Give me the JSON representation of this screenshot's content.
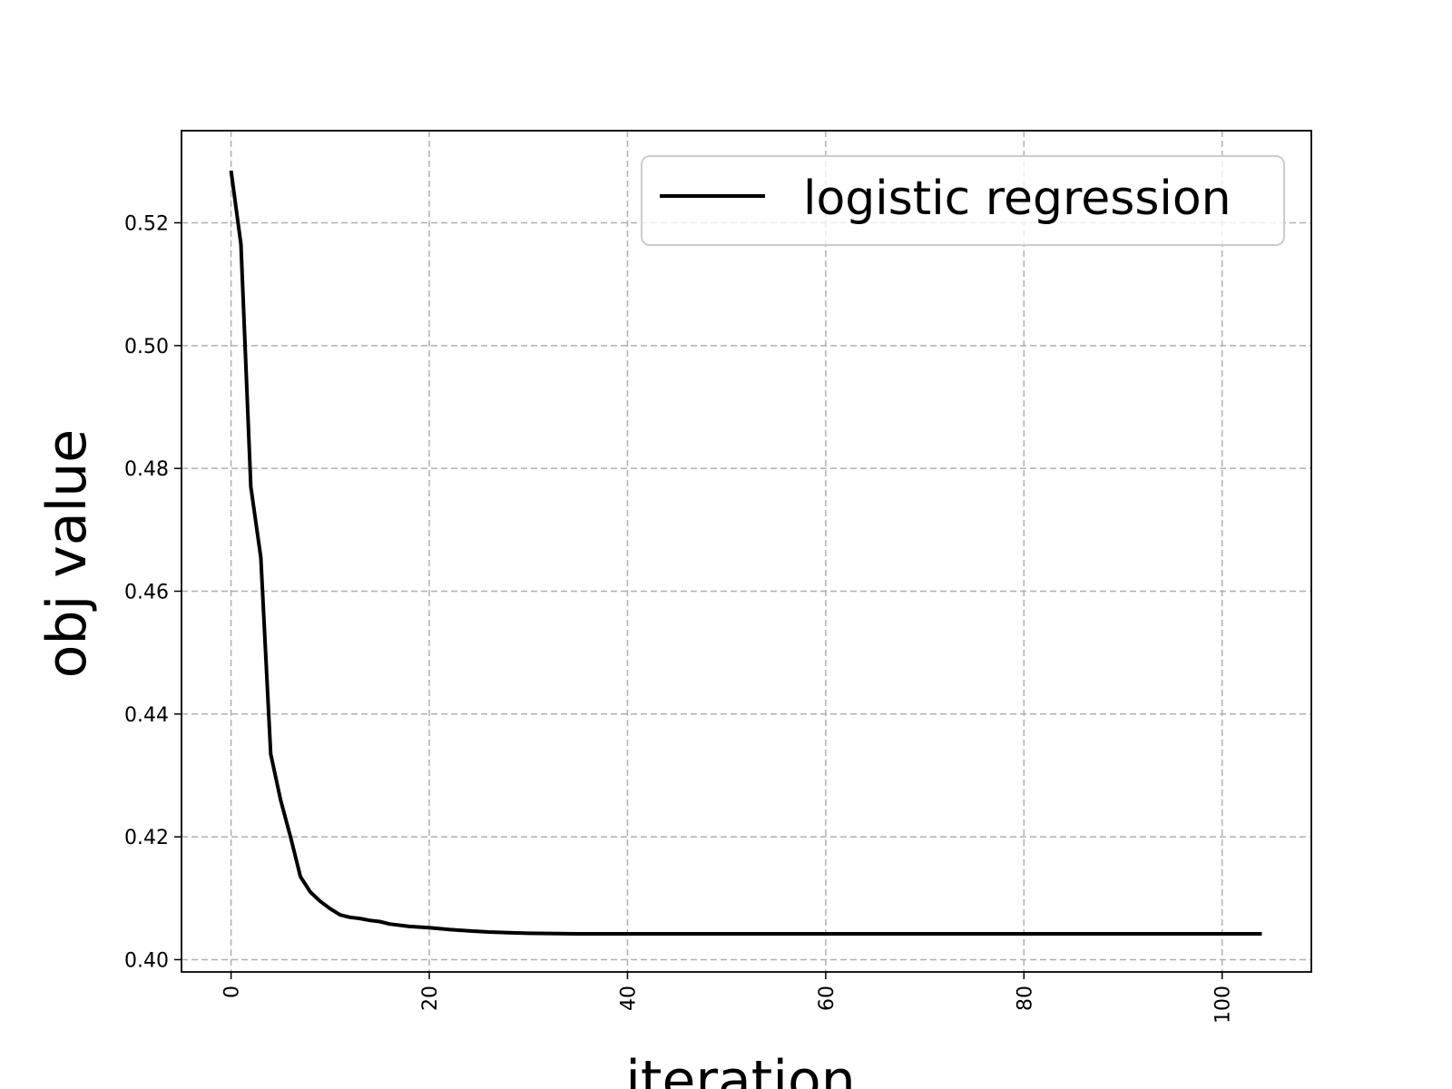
{
  "chart_data": {
    "type": "line",
    "xlabel": "iteration",
    "ylabel": "obj value",
    "xlim": [
      -5,
      109
    ],
    "ylim": [
      0.398,
      0.535
    ],
    "xticks": [
      0,
      20,
      40,
      60,
      80,
      100
    ],
    "xtick_labels": [
      "0",
      "20",
      "40",
      "60",
      "80",
      "100"
    ],
    "yticks": [
      0.4,
      0.42,
      0.44,
      0.46,
      0.48,
      0.5,
      0.52
    ],
    "ytick_labels": [
      "0.40",
      "0.42",
      "0.44",
      "0.46",
      "0.48",
      "0.50",
      "0.52"
    ],
    "grid": true,
    "legend_position": "top-right",
    "series": [
      {
        "name": "logistic regression",
        "color": "#000000",
        "x": [
          0,
          1,
          2,
          3,
          4,
          5,
          6,
          7,
          8,
          9,
          10,
          11,
          12,
          13,
          14,
          15,
          16,
          18,
          20,
          22,
          24,
          26,
          28,
          30,
          35,
          40,
          50,
          60,
          70,
          80,
          90,
          100,
          104
        ],
        "y": [
          0.5285,
          0.5165,
          0.477,
          0.4655,
          0.4335,
          0.426,
          0.42,
          0.4135,
          0.411,
          0.4095,
          0.4083,
          0.4073,
          0.4069,
          0.4067,
          0.4064,
          0.4062,
          0.4058,
          0.4054,
          0.4052,
          0.4049,
          0.4047,
          0.4045,
          0.4044,
          0.4043,
          0.4042,
          0.4042,
          0.4042,
          0.4042,
          0.4042,
          0.4042,
          0.4042,
          0.4042,
          0.4042
        ]
      }
    ]
  }
}
